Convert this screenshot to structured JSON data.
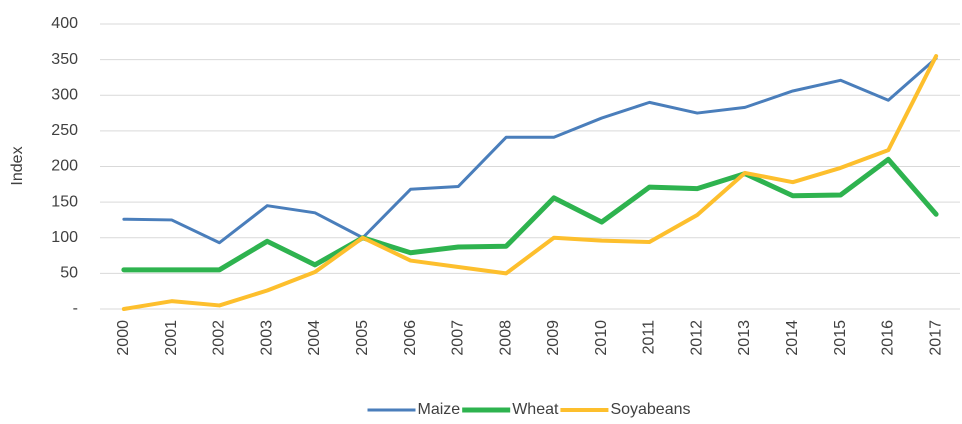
{
  "chart_data": {
    "type": "line",
    "y_label": "Index",
    "categories": [
      "2000",
      "2001",
      "2002",
      "2003",
      "2004",
      "2005",
      "2006",
      "2007",
      "2008",
      "2009",
      "2010",
      "2011",
      "2012",
      "2013",
      "2014",
      "2015",
      "2016",
      "2017"
    ],
    "series": [
      {
        "name": "Maize",
        "color": "#4a7ebb",
        "width": 3,
        "values": [
          126,
          125,
          93,
          145,
          135,
          100,
          168,
          172,
          241,
          241,
          268,
          290,
          275,
          283,
          306,
          321,
          293,
          352
        ]
      },
      {
        "name": "Wheat",
        "color": "#2eb34f",
        "width": 5,
        "values": [
          55,
          55,
          55,
          95,
          62,
          100,
          79,
          87,
          88,
          156,
          122,
          171,
          169,
          190,
          159,
          160,
          210,
          133
        ]
      },
      {
        "name": "Soyabeans",
        "color": "#fdbf2d",
        "width": 4,
        "values": [
          0,
          11,
          5,
          26,
          52,
          100,
          68,
          59,
          50,
          100,
          96,
          94,
          132,
          191,
          178,
          198,
          223,
          355
        ]
      }
    ],
    "ylim": [
      0,
      400
    ],
    "yticks": [
      {
        "value": 0,
        "label": "-"
      },
      50,
      100,
      150,
      200,
      250,
      300,
      350,
      400
    ],
    "grid": true,
    "legend": "bottom"
  }
}
